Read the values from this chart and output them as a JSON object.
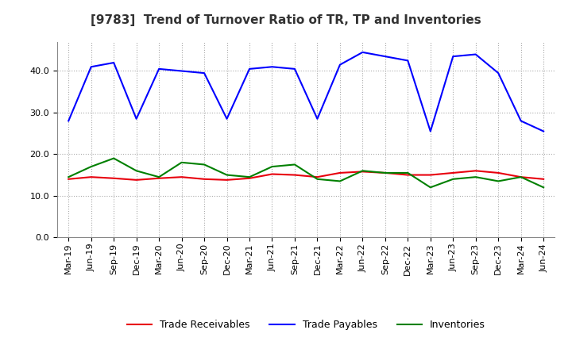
{
  "title": "[9783]  Trend of Turnover Ratio of TR, TP and Inventories",
  "x_labels": [
    "Mar-19",
    "Jun-19",
    "Sep-19",
    "Dec-19",
    "Mar-20",
    "Jun-20",
    "Sep-20",
    "Dec-20",
    "Mar-21",
    "Jun-21",
    "Sep-21",
    "Dec-21",
    "Mar-22",
    "Jun-22",
    "Sep-22",
    "Dec-22",
    "Mar-23",
    "Jun-23",
    "Sep-23",
    "Dec-23",
    "Mar-24",
    "Jun-24"
  ],
  "trade_receivables": [
    14.0,
    14.5,
    14.2,
    13.8,
    14.2,
    14.5,
    14.0,
    13.8,
    14.2,
    15.2,
    15.0,
    14.5,
    15.5,
    15.8,
    15.5,
    15.0,
    15.0,
    15.5,
    16.0,
    15.5,
    14.5,
    14.0
  ],
  "trade_payables": [
    28.0,
    41.0,
    42.0,
    28.5,
    40.5,
    40.0,
    39.5,
    28.5,
    40.5,
    41.0,
    40.5,
    28.5,
    41.5,
    44.5,
    43.5,
    42.5,
    25.5,
    43.5,
    44.0,
    39.5,
    28.0,
    25.5
  ],
  "inventories": [
    14.5,
    17.0,
    19.0,
    16.0,
    14.5,
    18.0,
    17.5,
    15.0,
    14.5,
    17.0,
    17.5,
    14.0,
    13.5,
    16.0,
    15.5,
    15.5,
    12.0,
    14.0,
    14.5,
    13.5,
    14.5,
    12.0
  ],
  "ylim": [
    0,
    47
  ],
  "yticks": [
    0.0,
    10.0,
    20.0,
    30.0,
    40.0
  ],
  "color_tr": "#e8000d",
  "color_tp": "#0000ff",
  "color_inv": "#008000",
  "background_color": "#ffffff",
  "grid_color": "#aaaaaa",
  "title_fontsize": 11,
  "legend_fontsize": 9,
  "tick_fontsize": 8
}
